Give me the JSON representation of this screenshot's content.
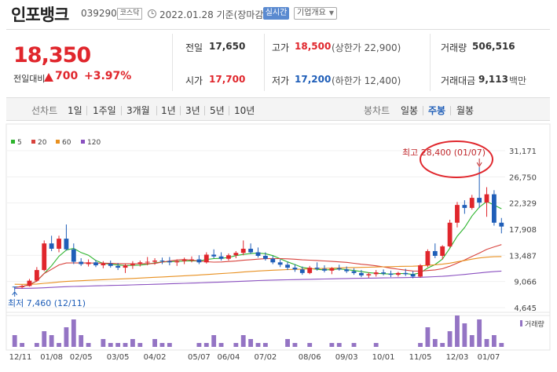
{
  "header": {
    "stock_name": "인포뱅크",
    "stock_code": "039290",
    "market": "코스닥",
    "date_text": "2022.01.28 기준(장마감)",
    "live_label": "실시간",
    "company_label": "기업개요",
    "icons": {
      "clock": "clock-icon",
      "caret": "chevron-down-icon"
    }
  },
  "price": {
    "current": "18,350",
    "change_label": "전일대비",
    "change": "700",
    "change_pct": "+3.97%",
    "up_color": "#e0262c"
  },
  "quotes": {
    "prev_close_label": "전일",
    "prev_close": "17,650",
    "high_label": "고가",
    "high": "18,500",
    "upper_limit": "(상한가 22,900)",
    "volume_label": "거래량",
    "volume": "506,516",
    "open_label": "시가",
    "open": "17,700",
    "low_label": "저가",
    "low": "17,200",
    "lower_limit": "(하한가 12,400)",
    "amount_label": "거래대금",
    "amount": "9,113",
    "amount_unit": "백만"
  },
  "period_bar": {
    "line_chart_label": "선차트",
    "line_periods": [
      "1일",
      "1주일",
      "3개월",
      "1년",
      "3년",
      "5년",
      "10년"
    ],
    "candle_chart_label": "봉차트",
    "candle_periods": [
      "일봉",
      "주봉",
      "월봉"
    ],
    "active": "주봉",
    "active_color": "#1f5eb8"
  },
  "chart_data": {
    "type": "candlestick",
    "legend": [
      {
        "name": "5",
        "color": "#2db42d"
      },
      {
        "name": "20",
        "color": "#d8423c"
      },
      {
        "name": "60",
        "color": "#e89020"
      },
      {
        "name": "120",
        "color": "#8a50c0"
      }
    ],
    "y_ticks": [
      "31,171",
      "26,750",
      "22,329",
      "17,908",
      "13,487",
      "9,066",
      "4,645"
    ],
    "ylim": [
      4645,
      31171
    ],
    "x_ticks": [
      "12/11",
      "01/08",
      "02/05",
      "03/05",
      "04/02",
      "05/07",
      "06/04",
      "07/02",
      "08/06",
      "09/03",
      "10/01",
      "11/05",
      "12/03",
      "01/07"
    ],
    "annotation_high": "최고 28,400 (01/07)",
    "annotation_low": "최저 7,460 (12/11)",
    "volume_label": "거래량",
    "candles": [
      [
        8200,
        8200,
        7460,
        8100
      ],
      [
        8100,
        8500,
        7900,
        8300
      ],
      [
        8300,
        9500,
        8200,
        9200
      ],
      [
        9200,
        11500,
        9000,
        11000
      ],
      [
        11000,
        16000,
        10800,
        15500
      ],
      [
        15500,
        16800,
        14200,
        14600
      ],
      [
        14600,
        16800,
        14000,
        16300
      ],
      [
        16300,
        18700,
        14300,
        14500
      ],
      [
        14500,
        15500,
        12000,
        12400
      ],
      [
        12400,
        13000,
        11700,
        12000
      ],
      [
        12000,
        12800,
        11600,
        12300
      ],
      [
        12300,
        12700,
        11500,
        11800
      ],
      [
        11800,
        12500,
        11300,
        12100
      ],
      [
        12100,
        12600,
        11400,
        11700
      ],
      [
        11700,
        12200,
        11000,
        11400
      ],
      [
        11400,
        12000,
        10500,
        11800
      ],
      [
        11800,
        12500,
        11200,
        12000
      ],
      [
        12000,
        12600,
        11600,
        12300
      ],
      [
        12300,
        13200,
        11800,
        12400
      ],
      [
        12400,
        13000,
        11900,
        12600
      ],
      [
        12600,
        13100,
        12000,
        12500
      ],
      [
        12500,
        13200,
        11800,
        12300
      ],
      [
        12300,
        12800,
        11700,
        12500
      ],
      [
        12500,
        13100,
        12000,
        12700
      ],
      [
        12700,
        13300,
        12300,
        12800
      ],
      [
        12800,
        13500,
        12000,
        12300
      ],
      [
        12300,
        14000,
        12100,
        13600
      ],
      [
        13600,
        14500,
        13000,
        13300
      ],
      [
        13300,
        14000,
        12600,
        12900
      ],
      [
        12900,
        13800,
        12600,
        13500
      ],
      [
        13500,
        14200,
        13000,
        13900
      ],
      [
        13900,
        16000,
        13500,
        14600
      ],
      [
        14600,
        15500,
        13700,
        14000
      ],
      [
        14000,
        14800,
        13100,
        13400
      ],
      [
        13400,
        14000,
        12600,
        12900
      ],
      [
        12900,
        13400,
        12000,
        12300
      ],
      [
        12300,
        12800,
        11500,
        11900
      ],
      [
        11900,
        12400,
        11000,
        11400
      ],
      [
        11400,
        12000,
        10700,
        11100
      ],
      [
        11100,
        11600,
        10200,
        10500
      ],
      [
        10500,
        11700,
        10300,
        11400
      ],
      [
        11400,
        12300,
        10900,
        11200
      ],
      [
        11200,
        11800,
        10600,
        10900
      ],
      [
        10900,
        11500,
        10300,
        11300
      ],
      [
        11300,
        11900,
        10900,
        11100
      ],
      [
        11100,
        11600,
        10500,
        10800
      ],
      [
        10800,
        11300,
        10200,
        10500
      ],
      [
        10500,
        11000,
        9800,
        10100
      ],
      [
        10100,
        10600,
        9700,
        10300
      ],
      [
        10300,
        11000,
        9900,
        10600
      ],
      [
        10600,
        11100,
        10100,
        10400
      ],
      [
        10400,
        10900,
        9800,
        10200
      ],
      [
        10200,
        10700,
        9900,
        10500
      ],
      [
        10500,
        11200,
        10000,
        10300
      ],
      [
        10300,
        10800,
        9600,
        9900
      ],
      [
        9900,
        12000,
        9700,
        11800
      ],
      [
        11800,
        14500,
        11500,
        14200
      ],
      [
        14200,
        15500,
        13000,
        13400
      ],
      [
        13400,
        15200,
        12800,
        15000
      ],
      [
        15000,
        19500,
        14800,
        19000
      ],
      [
        19000,
        22500,
        18200,
        22000
      ],
      [
        22000,
        22800,
        20500,
        21500
      ],
      [
        21500,
        23700,
        21200,
        23200
      ],
      [
        23200,
        28400,
        21500,
        22400
      ],
      [
        22400,
        25000,
        20000,
        23800
      ],
      [
        23800,
        24500,
        18500,
        19000
      ],
      [
        19000,
        19800,
        17200,
        18350
      ]
    ],
    "volumes": [
      3,
      1,
      0,
      1,
      4,
      3,
      1,
      5,
      7,
      3,
      1,
      0,
      2,
      1,
      1,
      1,
      2,
      1,
      0,
      2,
      1,
      1,
      0,
      0,
      0,
      1,
      1,
      3,
      1,
      0,
      1,
      3,
      2,
      1,
      1,
      0,
      0,
      2,
      1,
      0,
      1,
      0,
      0,
      1,
      1,
      0,
      1,
      0,
      0,
      1,
      0,
      0,
      0,
      0,
      0,
      1,
      5,
      2,
      1,
      4,
      8,
      6,
      3,
      7,
      2,
      3,
      1
    ]
  }
}
